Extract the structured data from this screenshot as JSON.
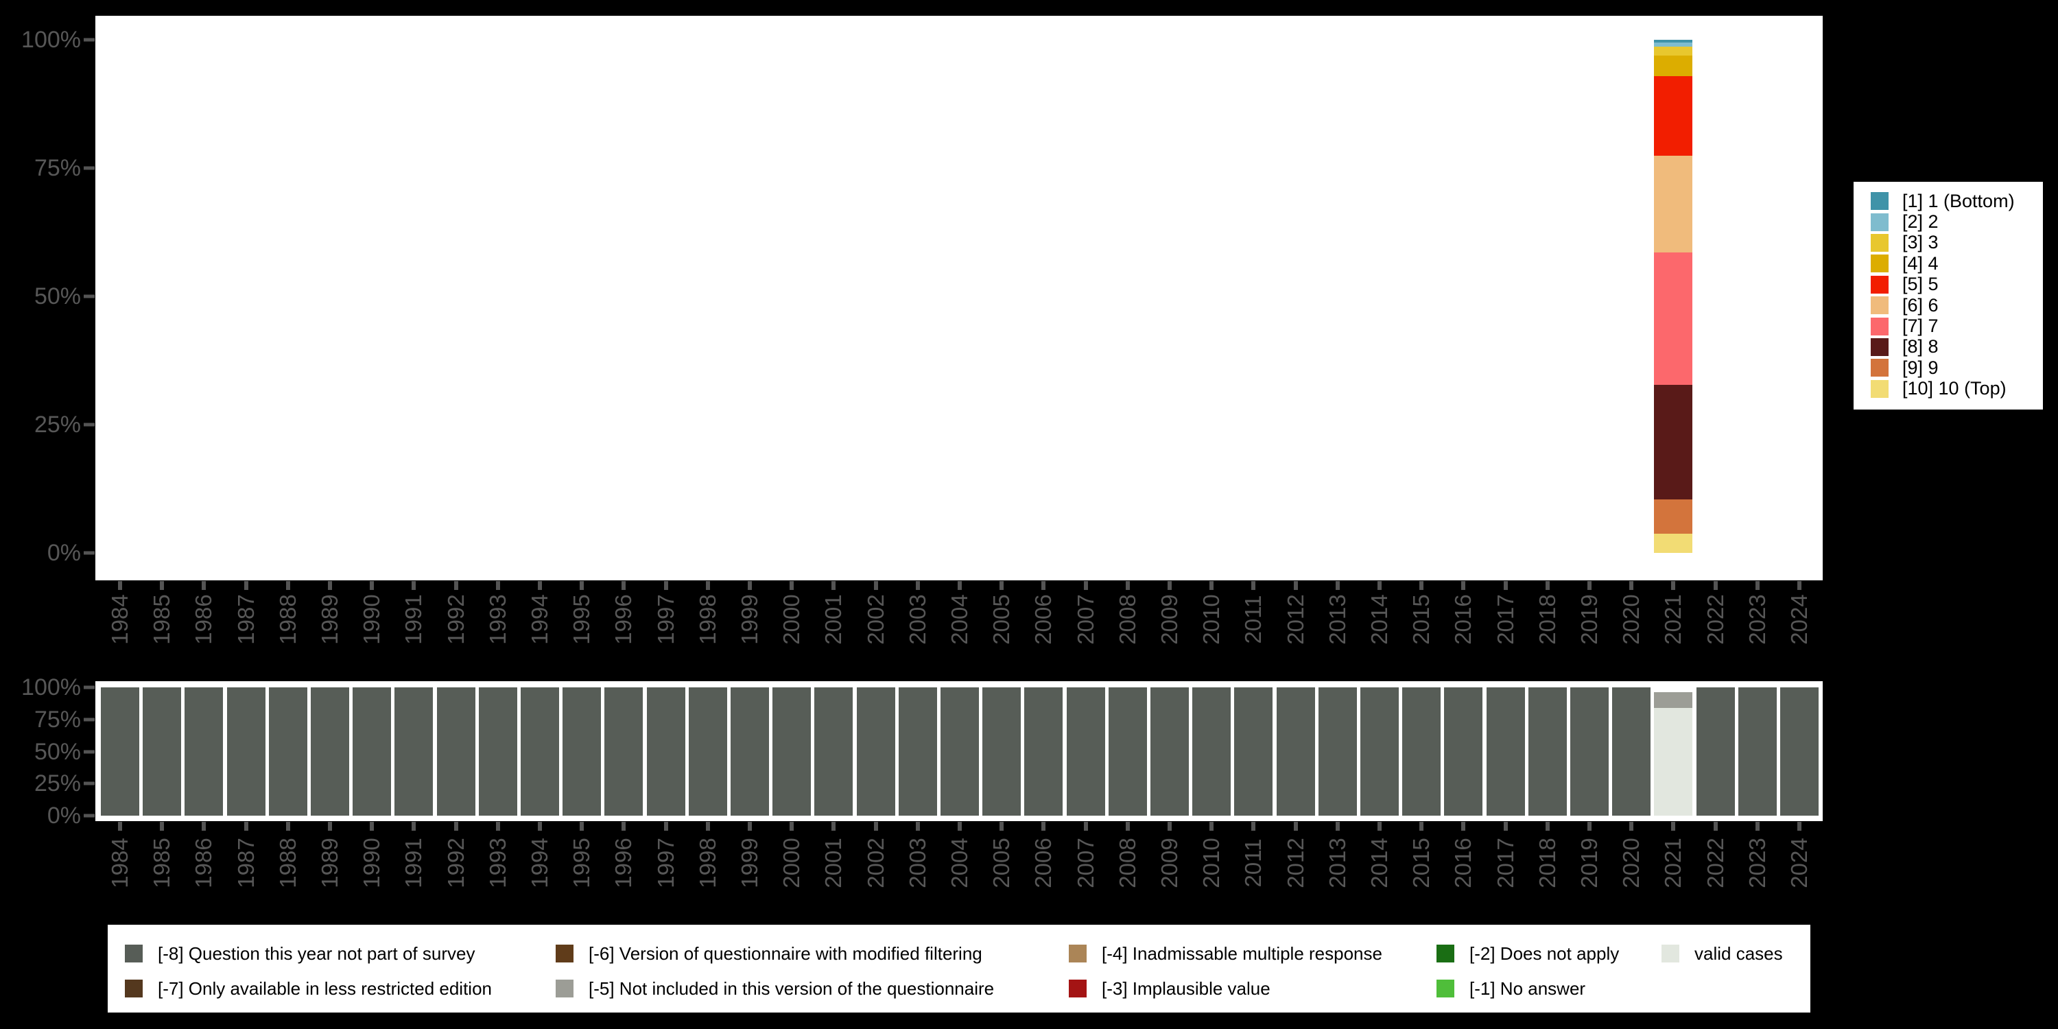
{
  "style": {
    "background": "#000000",
    "plot_background": "#ffffff",
    "axis_text_color": "#575757",
    "axis_tick_color": "#545454",
    "legend_background": "#ffffff",
    "legend_text_color": "#000000"
  },
  "chart_data": [
    {
      "id": "substantive-distribution",
      "type": "bar",
      "stacked": true,
      "unit": "percent",
      "title": "",
      "xlabel": "",
      "ylabel": "",
      "grid": false,
      "ylim": [
        0,
        100
      ],
      "y_ticks": [
        "0%",
        "25%",
        "50%",
        "75%",
        "100%"
      ],
      "x": [
        "1984",
        "1985",
        "1986",
        "1987",
        "1988",
        "1989",
        "1990",
        "1991",
        "1992",
        "1993",
        "1994",
        "1995",
        "1996",
        "1997",
        "1998",
        "1999",
        "2000",
        "2001",
        "2002",
        "2003",
        "2004",
        "2005",
        "2006",
        "2007",
        "2008",
        "2009",
        "2010",
        "2011",
        "2012",
        "2013",
        "2014",
        "2015",
        "2016",
        "2017",
        "2018",
        "2019",
        "2020",
        "2021",
        "2022",
        "2023",
        "2024"
      ],
      "x_tick_labels_rotated": true,
      "legend_position": "right",
      "series": [
        {
          "name": "[1] 1 (Bottom)",
          "color": "#3f93a8",
          "default": 0,
          "values": {
            "2021": 0.6
          }
        },
        {
          "name": "[2] 2",
          "color": "#7fbcce",
          "default": 0,
          "values": {
            "2021": 0.7
          }
        },
        {
          "name": "[3] 3",
          "color": "#e8c72e",
          "default": 0,
          "values": {
            "2021": 1.8
          }
        },
        {
          "name": "[4] 4",
          "color": "#dcad00",
          "default": 0,
          "values": {
            "2021": 4
          }
        },
        {
          "name": "[5] 5",
          "color": "#f21e00",
          "default": 0,
          "values": {
            "2021": 15.5
          }
        },
        {
          "name": "[6] 6",
          "color": "#f0bb7c",
          "default": 0,
          "values": {
            "2021": 18.8
          }
        },
        {
          "name": "[7] 7",
          "color": "#fc686c",
          "default": 0,
          "values": {
            "2021": 25.8
          }
        },
        {
          "name": "[8] 8",
          "color": "#591a18",
          "default": 0,
          "values": {
            "2021": 22.4
          }
        },
        {
          "name": "[9] 9",
          "color": "#d3743c",
          "default": 0,
          "values": {
            "2021": 6.7
          }
        },
        {
          "name": "[10] 10 (Top)",
          "color": "#f2dc74",
          "default": 0,
          "values": {
            "2021": 3.7
          }
        }
      ]
    },
    {
      "id": "missing-values",
      "type": "bar",
      "stacked": true,
      "unit": "percent",
      "title": "",
      "xlabel": "",
      "ylabel": "",
      "grid": false,
      "ylim": [
        0,
        100
      ],
      "y_ticks": [
        "0%",
        "25%",
        "50%",
        "75%",
        "100%"
      ],
      "x": [
        "1984",
        "1985",
        "1986",
        "1987",
        "1988",
        "1989",
        "1990",
        "1991",
        "1992",
        "1993",
        "1994",
        "1995",
        "1996",
        "1997",
        "1998",
        "1999",
        "2000",
        "2001",
        "2002",
        "2003",
        "2004",
        "2005",
        "2006",
        "2007",
        "2008",
        "2009",
        "2010",
        "2011",
        "2012",
        "2013",
        "2014",
        "2015",
        "2016",
        "2017",
        "2018",
        "2019",
        "2020",
        "2021",
        "2022",
        "2023",
        "2024"
      ],
      "x_tick_labels_rotated": true,
      "legend_position": "bottom",
      "series": [
        {
          "name": "[-8] Question this year not part of survey",
          "color": "#575d57",
          "default": 100,
          "values": {
            "2021": 0
          }
        },
        {
          "name": "[-7] Only available in less restricted edition",
          "color": "#54381e",
          "default": 0,
          "values": {}
        },
        {
          "name": "[-6] Version of questionnaire with modified filtering",
          "color": "#603c1a",
          "default": 0,
          "values": {}
        },
        {
          "name": "[-5] Not included in this version of the questionnaire",
          "color": "#9c9d96",
          "default": 0,
          "values": {
            "2021": 11.8
          }
        },
        {
          "name": "[-4] Inadmissable multiple response",
          "color": "#ab8557",
          "default": 0,
          "values": {}
        },
        {
          "name": "[-3] Implausible value",
          "color": "#a41414",
          "default": 0,
          "values": {}
        },
        {
          "name": "[-2] Does not apply",
          "color": "#1a6e14",
          "default": 0,
          "values": {}
        },
        {
          "name": "[-1] No answer",
          "color": "#4fbe3a",
          "default": 0,
          "values": {}
        },
        {
          "name": "valid cases",
          "color": "#e2e7df",
          "default": 0,
          "values": {
            "2021": 84.2
          }
        }
      ]
    }
  ]
}
